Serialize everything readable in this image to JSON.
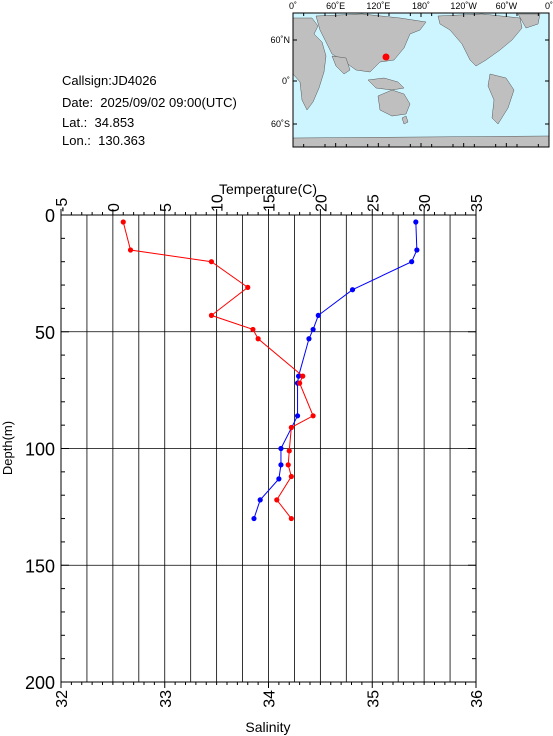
{
  "info": {
    "callsign": "Callsign:JD4026",
    "date": "Date:  2025/09/02 09:00(UTC)",
    "lat": "Lat.:  34.853",
    "lon": "Lon.:  130.363"
  },
  "map": {
    "top_lon_labels": [
      "0˚",
      "60˚E",
      "120˚E",
      "180˚",
      "120˚W",
      "60˚W",
      "0˚"
    ],
    "lat_labels": [
      "60˚N",
      "0˚",
      "60˚S"
    ],
    "ocean_color": "#ccf5ff",
    "land_color": "#bfbfbf",
    "station_color": "#ff0000"
  },
  "chart_data": {
    "type": "scatter",
    "depth_label": "Depth(m)",
    "temperature_label": "Temperature(C)",
    "salinity_label": "Salinity",
    "depth_range": [
      0,
      200
    ],
    "depth_ticks": [
      "0",
      "50",
      "100",
      "150",
      "200"
    ],
    "temperature_range": [
      -5,
      35
    ],
    "temperature_ticks": [
      "-5",
      "0",
      "5",
      "10",
      "15",
      "20",
      "25",
      "30",
      "35"
    ],
    "salinity_range": [
      32,
      36
    ],
    "salinity_ticks": [
      "32",
      "33",
      "34",
      "35",
      "36"
    ],
    "grid": true,
    "series": [
      {
        "variable": "temperature",
        "color": "#0000ff",
        "points": [
          [
            29.2,
            3
          ],
          [
            29.3,
            15
          ],
          [
            28.8,
            20
          ],
          [
            23.1,
            32
          ],
          [
            19.8,
            43
          ],
          [
            19.3,
            49
          ],
          [
            18.9,
            53
          ],
          [
            17.9,
            69
          ],
          [
            17.8,
            72
          ],
          [
            17.8,
            86
          ],
          [
            16.2,
            100
          ],
          [
            16.2,
            107
          ],
          [
            16.0,
            113
          ],
          [
            14.2,
            122
          ],
          [
            13.6,
            130
          ]
        ]
      },
      {
        "variable": "salinity",
        "color": "#ff0000",
        "points": [
          [
            32.6,
            3
          ],
          [
            32.67,
            15
          ],
          [
            33.45,
            20
          ],
          [
            33.8,
            31
          ],
          [
            33.45,
            43
          ],
          [
            33.85,
            49
          ],
          [
            33.9,
            53
          ],
          [
            34.33,
            69
          ],
          [
            34.3,
            72
          ],
          [
            34.43,
            86
          ],
          [
            34.22,
            91
          ],
          [
            34.2,
            101
          ],
          [
            34.19,
            107
          ],
          [
            34.22,
            112
          ],
          [
            34.08,
            122
          ],
          [
            34.22,
            130
          ]
        ]
      }
    ]
  }
}
